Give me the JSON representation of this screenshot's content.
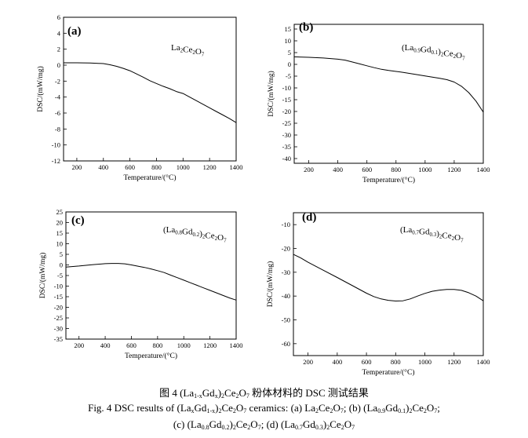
{
  "chart_data": [
    {
      "type": "line",
      "panel_label": "(a)",
      "title_parts": [
        [
          "La",
          ""
        ],
        [
          "2",
          ""
        ],
        [
          "Ce",
          ""
        ],
        [
          "2",
          ""
        ],
        [
          "O",
          ""
        ],
        [
          "7",
          ""
        ]
      ],
      "title_text": "La2Ce2O7",
      "title_segments": [
        {
          "t": "La",
          "sub": false
        },
        {
          "t": "2",
          "sub": true
        },
        {
          "t": "Ce",
          "sub": false
        },
        {
          "t": "2",
          "sub": true
        },
        {
          "t": "O",
          "sub": false
        },
        {
          "t": "7",
          "sub": true
        }
      ],
      "xlabel": "Temperature/(°C)",
      "ylabel": "DSC/(mW/mg)",
      "xlim": [
        100,
        1400
      ],
      "ylim": [
        -12,
        6
      ],
      "xticks": [
        200,
        400,
        600,
        800,
        1000,
        1200,
        1400
      ],
      "yticks": [
        -12,
        -10,
        -8,
        -6,
        -4,
        -2,
        0,
        2,
        4,
        6
      ],
      "x": [
        100,
        200,
        300,
        400,
        450,
        500,
        550,
        600,
        650,
        700,
        750,
        800,
        850,
        900,
        950,
        1000,
        1050,
        1100,
        1150,
        1200,
        1250,
        1300,
        1350,
        1400
      ],
      "y": [
        0.3,
        0.3,
        0.28,
        0.2,
        0.05,
        -0.15,
        -0.4,
        -0.7,
        -1.1,
        -1.5,
        -1.95,
        -2.3,
        -2.65,
        -2.95,
        -3.3,
        -3.55,
        -4.0,
        -4.45,
        -4.9,
        -5.35,
        -5.8,
        -6.25,
        -6.7,
        -7.2
      ]
    },
    {
      "type": "line",
      "panel_label": "(b)",
      "title_segments": [
        {
          "t": "(La",
          "sub": false
        },
        {
          "t": "0.9",
          "sub": true
        },
        {
          "t": "Gd",
          "sub": false
        },
        {
          "t": "0.1",
          "sub": true
        },
        {
          "t": ")",
          "sub": false
        },
        {
          "t": "2",
          "sub": true
        },
        {
          "t": "Ce",
          "sub": false
        },
        {
          "t": "2",
          "sub": true
        },
        {
          "t": "O",
          "sub": false
        },
        {
          "t": "7",
          "sub": true
        }
      ],
      "title_text": "(La0.9Gd0.1)2Ce2O7",
      "xlabel": "Temperature/(°C)",
      "ylabel": "DSC/(mW/mg)",
      "xlim": [
        100,
        1400
      ],
      "ylim": [
        -42,
        17
      ],
      "xticks": [
        200,
        400,
        600,
        800,
        1000,
        1200,
        1400
      ],
      "yticks": [
        -40,
        -35,
        -30,
        -25,
        -20,
        -15,
        -10,
        -5,
        0,
        5,
        10,
        15
      ],
      "x": [
        100,
        200,
        300,
        400,
        450,
        500,
        550,
        600,
        650,
        700,
        750,
        800,
        850,
        900,
        950,
        1000,
        1050,
        1100,
        1150,
        1200,
        1250,
        1300,
        1350,
        1400
      ],
      "y": [
        3.2,
        3.0,
        2.7,
        2.2,
        1.8,
        1.0,
        0.2,
        -0.6,
        -1.4,
        -2.1,
        -2.6,
        -3.0,
        -3.4,
        -3.9,
        -4.4,
        -4.9,
        -5.4,
        -5.9,
        -6.5,
        -7.5,
        -9.3,
        -12.0,
        -15.6,
        -20.3
      ]
    },
    {
      "type": "line",
      "panel_label": "(c)",
      "title_segments": [
        {
          "t": "(La",
          "sub": false
        },
        {
          "t": "0.8",
          "sub": true
        },
        {
          "t": "Gd",
          "sub": false
        },
        {
          "t": "0.2",
          "sub": true
        },
        {
          "t": ")",
          "sub": false
        },
        {
          "t": "2",
          "sub": true
        },
        {
          "t": "Ce",
          "sub": false
        },
        {
          "t": "2",
          "sub": true
        },
        {
          "t": "O",
          "sub": false
        },
        {
          "t": "7",
          "sub": true
        }
      ],
      "title_text": "(La0.8Gd0.2)2Ce2O7",
      "xlabel": "Temperature/(°C)",
      "ylabel": "DSC/(mW/mg)",
      "xlim": [
        100,
        1400
      ],
      "ylim": [
        -35,
        25
      ],
      "xticks": [
        200,
        400,
        600,
        800,
        1000,
        1200,
        1400
      ],
      "yticks": [
        -35,
        -30,
        -25,
        -20,
        -15,
        -10,
        -5,
        0,
        5,
        10,
        15,
        20,
        25
      ],
      "x": [
        100,
        200,
        300,
        400,
        450,
        500,
        550,
        600,
        650,
        700,
        750,
        800,
        850,
        900,
        950,
        1000,
        1050,
        1100,
        1150,
        1200,
        1250,
        1300,
        1350,
        1400
      ],
      "y": [
        -1.0,
        -0.5,
        0.1,
        0.6,
        0.7,
        0.7,
        0.5,
        0.0,
        -0.6,
        -1.2,
        -1.9,
        -2.7,
        -3.6,
        -4.8,
        -6.0,
        -7.2,
        -8.4,
        -9.6,
        -10.8,
        -12.0,
        -13.2,
        -14.4,
        -15.6,
        -16.6
      ]
    },
    {
      "type": "line",
      "panel_label": "(d)",
      "title_segments": [
        {
          "t": "(La",
          "sub": false
        },
        {
          "t": "0.7",
          "sub": true
        },
        {
          "t": "Gd",
          "sub": false
        },
        {
          "t": "0.3",
          "sub": true
        },
        {
          "t": ")",
          "sub": false
        },
        {
          "t": "2",
          "sub": true
        },
        {
          "t": "Ce",
          "sub": false
        },
        {
          "t": "2",
          "sub": true
        },
        {
          "t": "O",
          "sub": false
        },
        {
          "t": "7",
          "sub": true
        }
      ],
      "title_text": "(La0.7Gd0.3)2Ce2O7",
      "xlabel": "Temperature/(°C)",
      "ylabel": "DSC/(mW/mg)",
      "xlim": [
        100,
        1400
      ],
      "ylim": [
        -65,
        -5
      ],
      "xticks": [
        200,
        400,
        600,
        800,
        1000,
        1200,
        1400
      ],
      "yticks": [
        -60,
        -50,
        -40,
        -30,
        -20,
        -10
      ],
      "x": [
        100,
        150,
        200,
        300,
        400,
        500,
        600,
        650,
        700,
        750,
        800,
        850,
        900,
        950,
        1000,
        1050,
        1100,
        1150,
        1200,
        1250,
        1300,
        1350,
        1400
      ],
      "y": [
        -22.5,
        -24.0,
        -25.8,
        -29.0,
        -32.2,
        -35.5,
        -38.8,
        -40.2,
        -41.2,
        -41.8,
        -42.1,
        -42.0,
        -41.2,
        -40.0,
        -38.9,
        -38.0,
        -37.5,
        -37.2,
        -37.2,
        -37.6,
        -38.6,
        -40.0,
        -42.0
      ]
    }
  ],
  "caption": {
    "cn_prefix": "图 4 ",
    "cn_formula": [
      {
        "t": "(La",
        "sub": false
      },
      {
        "t": "1-x",
        "sub": true
      },
      {
        "t": "Gd",
        "sub": false
      },
      {
        "t": "x",
        "sub": true
      },
      {
        "t": ")",
        "sub": false
      },
      {
        "t": "2",
        "sub": true
      },
      {
        "t": "Ce",
        "sub": false
      },
      {
        "t": "2",
        "sub": true
      },
      {
        "t": "O",
        "sub": false
      },
      {
        "t": "7",
        "sub": true
      }
    ],
    "cn_suffix": " 粉体材料的 DSC 测试结果",
    "en_prefix": "Fig. 4 DSC results of ",
    "en_formula": [
      {
        "t": "(La",
        "sub": false
      },
      {
        "t": "x",
        "sub": true
      },
      {
        "t": "Gd",
        "sub": false
      },
      {
        "t": "1-x",
        "sub": true
      },
      {
        "t": ")",
        "sub": false
      },
      {
        "t": "2",
        "sub": true
      },
      {
        "t": "Ce",
        "sub": false
      },
      {
        "t": "2",
        "sub": true
      },
      {
        "t": "O",
        "sub": false
      },
      {
        "t": "7",
        "sub": true
      }
    ],
    "en_mid": " ceramics: ",
    "en_a_label": "(a) ",
    "en_a": [
      {
        "t": "La",
        "sub": false
      },
      {
        "t": "2",
        "sub": true
      },
      {
        "t": "Ce",
        "sub": false
      },
      {
        "t": "2",
        "sub": true
      },
      {
        "t": "O",
        "sub": false
      },
      {
        "t": "7",
        "sub": true
      }
    ],
    "sep": "; ",
    "en_b_label": "(b) ",
    "en_b": [
      {
        "t": "(La",
        "sub": false
      },
      {
        "t": "0.9",
        "sub": true
      },
      {
        "t": "Gd",
        "sub": false
      },
      {
        "t": "0.1",
        "sub": true
      },
      {
        "t": ")",
        "sub": false
      },
      {
        "t": "2",
        "sub": true
      },
      {
        "t": "Ce",
        "sub": false
      },
      {
        "t": "2",
        "sub": true
      },
      {
        "t": "O",
        "sub": false
      },
      {
        "t": "7",
        "sub": true
      }
    ],
    "end": ";",
    "en_c_label": "(c) ",
    "en_c": [
      {
        "t": "(La",
        "sub": false
      },
      {
        "t": "0.8",
        "sub": true
      },
      {
        "t": "Gd",
        "sub": false
      },
      {
        "t": "0.2",
        "sub": true
      },
      {
        "t": ")",
        "sub": false
      },
      {
        "t": "2",
        "sub": true
      },
      {
        "t": "Ce",
        "sub": false
      },
      {
        "t": "2",
        "sub": true
      },
      {
        "t": "O",
        "sub": false
      },
      {
        "t": "7",
        "sub": true
      }
    ],
    "en_d_label": "(d) ",
    "en_d": [
      {
        "t": "(La",
        "sub": false
      },
      {
        "t": "0.7",
        "sub": true
      },
      {
        "t": "Gd",
        "sub": false
      },
      {
        "t": "0.3",
        "sub": true
      },
      {
        "t": ")",
        "sub": false
      },
      {
        "t": "2",
        "sub": true
      },
      {
        "t": "Ce",
        "sub": false
      },
      {
        "t": "2",
        "sub": true
      },
      {
        "t": "O",
        "sub": false
      },
      {
        "t": "7",
        "sub": true
      }
    ]
  }
}
